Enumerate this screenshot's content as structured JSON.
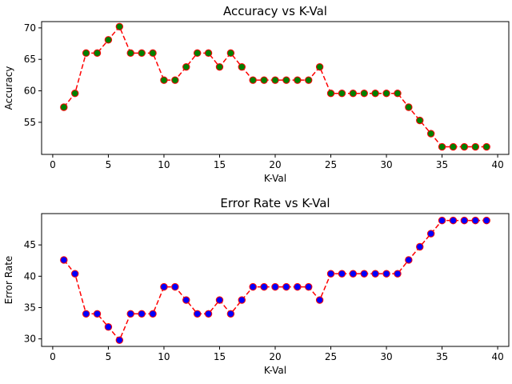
{
  "chart_data": [
    {
      "type": "line",
      "title": "Accuracy vs K-Val",
      "xlabel": "K-Val",
      "ylabel": "Accuracy",
      "xlim": [
        -1,
        41
      ],
      "ylim": [
        49.9,
        71.0
      ],
      "xticks": [
        0,
        5,
        10,
        15,
        20,
        25,
        30,
        35,
        40
      ],
      "yticks": [
        55,
        60,
        65,
        70
      ],
      "grid": false,
      "line_color": "#ff0000",
      "line_style": "dashed",
      "marker_face": "#008000",
      "marker_edge": "#ff0000",
      "x": [
        1,
        2,
        3,
        4,
        5,
        6,
        7,
        8,
        9,
        10,
        11,
        12,
        13,
        14,
        15,
        16,
        17,
        18,
        19,
        20,
        21,
        22,
        23,
        24,
        25,
        26,
        27,
        28,
        29,
        30,
        31,
        32,
        33,
        34,
        35,
        36,
        37,
        38,
        39
      ],
      "y": [
        57.4,
        59.6,
        66.0,
        66.0,
        68.1,
        70.2,
        66.0,
        66.0,
        66.0,
        61.7,
        61.7,
        63.8,
        66.0,
        66.0,
        63.8,
        66.0,
        63.8,
        61.7,
        61.7,
        61.7,
        61.7,
        61.7,
        61.7,
        63.8,
        59.6,
        59.6,
        59.6,
        59.6,
        59.6,
        59.6,
        59.6,
        57.4,
        55.3,
        53.2,
        51.1,
        51.1,
        51.1,
        51.1,
        51.1
      ]
    },
    {
      "type": "line",
      "title": "Error Rate vs K-Val",
      "xlabel": "K-Val",
      "ylabel": "Error Rate",
      "xlim": [
        -1,
        41
      ],
      "ylim": [
        28.8,
        50.0
      ],
      "xticks": [
        0,
        5,
        10,
        15,
        20,
        25,
        30,
        35,
        40
      ],
      "yticks": [
        30,
        35,
        40,
        45
      ],
      "grid": false,
      "line_color": "#ff0000",
      "line_style": "dashed",
      "marker_face": "#0000ff",
      "marker_edge": "#ff0000",
      "x": [
        1,
        2,
        3,
        4,
        5,
        6,
        7,
        8,
        9,
        10,
        11,
        12,
        13,
        14,
        15,
        16,
        17,
        18,
        19,
        20,
        21,
        22,
        23,
        24,
        25,
        26,
        27,
        28,
        29,
        30,
        31,
        32,
        33,
        34,
        35,
        36,
        37,
        38,
        39
      ],
      "y": [
        42.6,
        40.4,
        34.0,
        34.0,
        31.9,
        29.8,
        34.0,
        34.0,
        34.0,
        38.3,
        38.3,
        36.2,
        34.0,
        34.0,
        36.2,
        34.0,
        36.2,
        38.3,
        38.3,
        38.3,
        38.3,
        38.3,
        38.3,
        36.2,
        40.4,
        40.4,
        40.4,
        40.4,
        40.4,
        40.4,
        40.4,
        42.6,
        44.7,
        46.8,
        48.9,
        48.9,
        48.9,
        48.9,
        48.9
      ]
    }
  ]
}
